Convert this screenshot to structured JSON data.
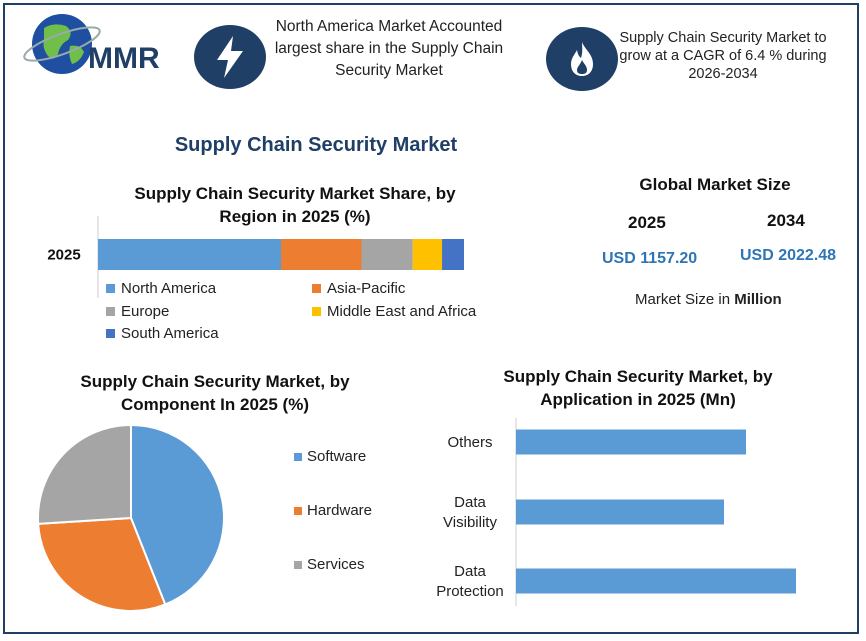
{
  "logo": {
    "text": "MMR"
  },
  "header": {
    "left_text": "North America Market Accounted largest share in the Supply Chain Security Market",
    "right_text": "Supply Chain Security Market to grow at a CAGR of 6.4 % during 2026-2034",
    "icons": [
      "lightning-icon",
      "flame-icon"
    ]
  },
  "main_title": "Supply Chain Security Market",
  "global_size": {
    "title": "Global Market Size",
    "year1": "2025",
    "year2": "2034",
    "value1": "USD 1157.20",
    "value2": "USD 2022.48",
    "unit_prefix": "Market Size in ",
    "unit_bold": "Million"
  },
  "chart_data": [
    {
      "type": "bar",
      "orientation": "horizontal-stacked",
      "title": "Supply Chain Security Market Share, by Region in 2025 (%)",
      "categories": [
        "2025"
      ],
      "series": [
        {
          "name": "North America",
          "values": [
            50
          ],
          "color": "#5b9bd5"
        },
        {
          "name": "Asia-Pacific",
          "values": [
            22
          ],
          "color": "#ed7d31"
        },
        {
          "name": "Europe",
          "values": [
            14
          ],
          "color": "#a5a5a5"
        },
        {
          "name": "Middle East and Africa",
          "values": [
            8
          ],
          "color": "#ffc000"
        },
        {
          "name": "South America",
          "values": [
            6
          ],
          "color": "#4472c4"
        }
      ],
      "xlim": [
        0,
        100
      ],
      "legend": "bottom"
    },
    {
      "type": "pie",
      "title": "Supply Chain Security Market, by Component In 2025 (%)",
      "labels": [
        "Software",
        "Hardware",
        "Services"
      ],
      "values": [
        44,
        30,
        26
      ],
      "colors": [
        "#5b9bd5",
        "#ed7d31",
        "#a5a5a5"
      ],
      "legend": "right"
    },
    {
      "type": "bar",
      "orientation": "horizontal",
      "title": "Supply Chain Security Market, by Application in 2025 (Mn)",
      "categories": [
        "Others",
        "Data Visibility",
        "Data Protection"
      ],
      "values": [
        230,
        208,
        280
      ],
      "color": "#5b9bd5",
      "xlim": [
        0,
        300
      ]
    }
  ]
}
